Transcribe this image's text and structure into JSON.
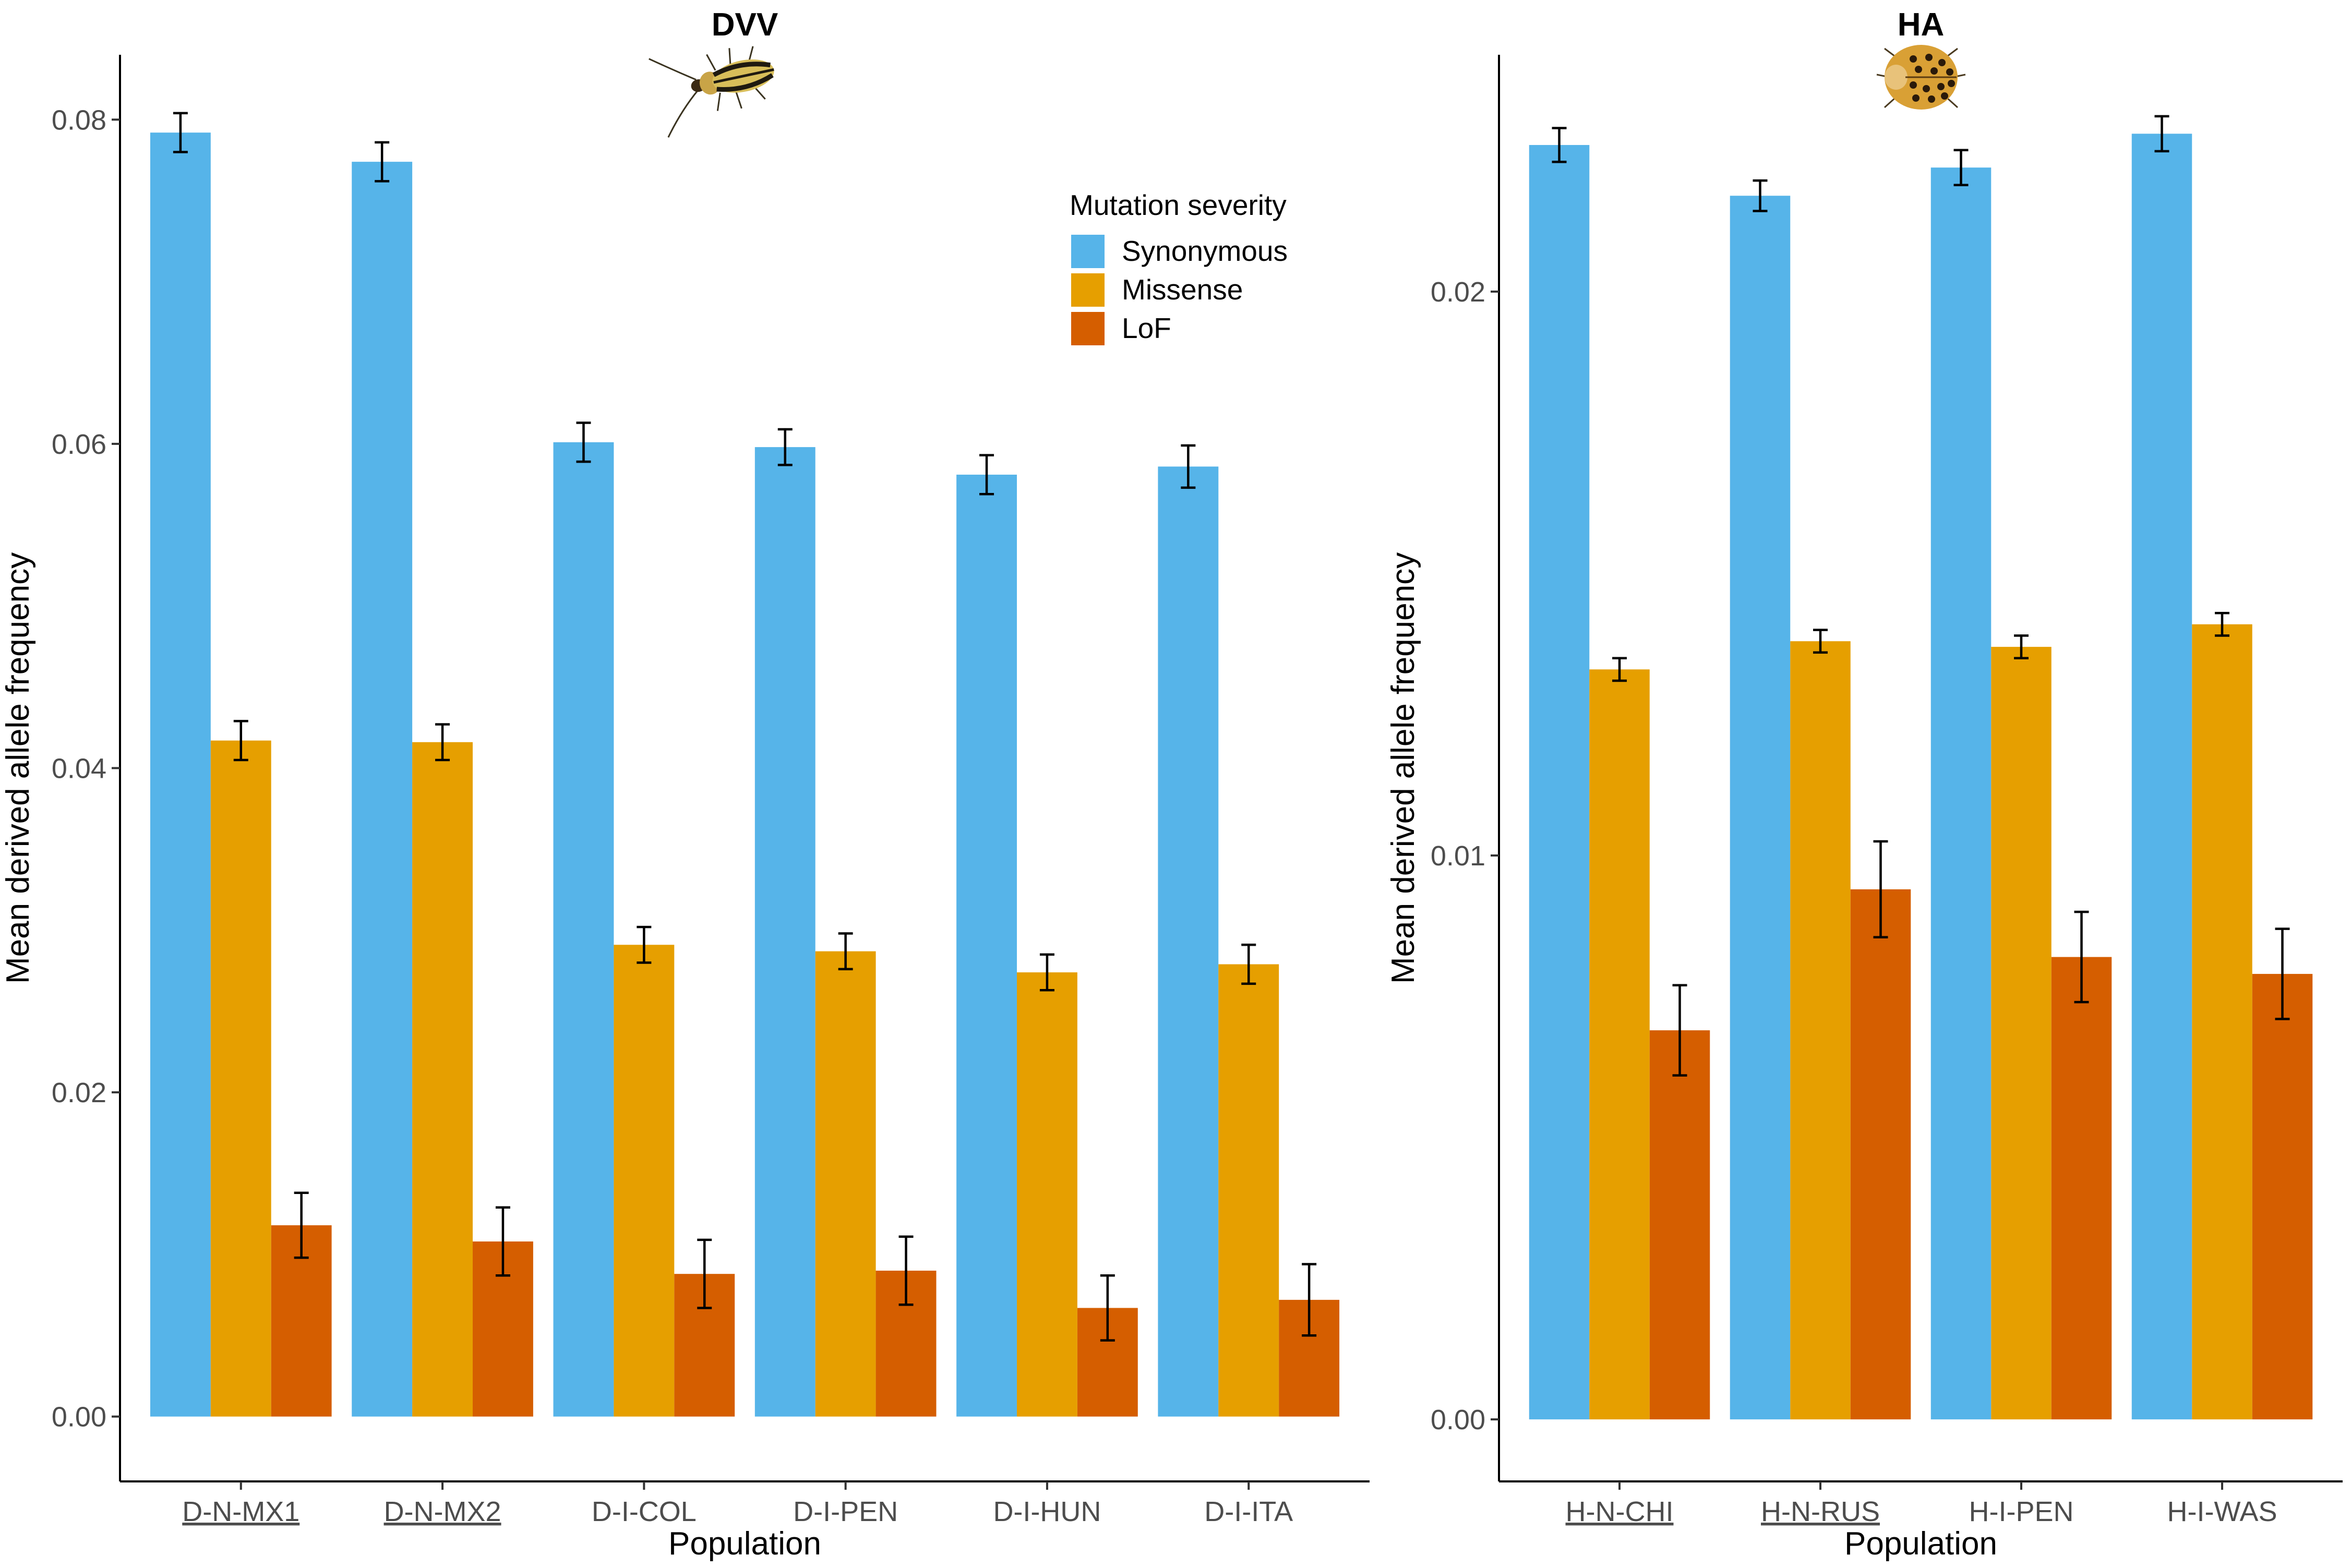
{
  "legend": {
    "title": "Mutation severity",
    "items": [
      {
        "label": "Synonymous",
        "color": "#56B4E9"
      },
      {
        "label": "Missense",
        "color": "#E69F00"
      },
      {
        "label": "LoF",
        "color": "#D55E00"
      }
    ]
  },
  "chart_data": [
    {
      "type": "bar",
      "title": "DVV",
      "icon": "rootworm-beetle-icon",
      "xlabel": "Population",
      "ylabel": "Mean derived allele frequency",
      "ylim": [
        -0.004,
        0.084
      ],
      "yticks": [
        0.0,
        0.02,
        0.04,
        0.06,
        0.08
      ],
      "ytick_labels": [
        "0.00",
        "0.02",
        "0.04",
        "0.06",
        "0.08"
      ],
      "categories": [
        "D-N-MX1",
        "D-N-MX2",
        "D-I-COL",
        "D-I-PEN",
        "D-I-HUN",
        "D-I-ITA"
      ],
      "underlined_categories": [
        "D-N-MX1",
        "D-N-MX2"
      ],
      "series": [
        {
          "name": "Synonymous",
          "values": [
            0.0792,
            0.0774,
            0.0601,
            0.0598,
            0.0581,
            0.0586
          ],
          "errors": [
            0.0012,
            0.0012,
            0.0012,
            0.0011,
            0.0012,
            0.0013
          ]
        },
        {
          "name": "Missense",
          "values": [
            0.0417,
            0.0416,
            0.0291,
            0.0287,
            0.0274,
            0.0279
          ],
          "errors": [
            0.0012,
            0.0011,
            0.0011,
            0.0011,
            0.0011,
            0.0012
          ]
        },
        {
          "name": "LoF",
          "values": [
            0.0118,
            0.0108,
            0.0088,
            0.009,
            0.0067,
            0.0072
          ],
          "errors": [
            0.002,
            0.0021,
            0.0021,
            0.0021,
            0.002,
            0.0022
          ]
        }
      ],
      "legend_position": "top-right",
      "grid": false
    },
    {
      "type": "bar",
      "title": "HA",
      "icon": "ladybird-beetle-icon",
      "xlabel": "Population",
      "ylabel": "Mean derived allele frequency",
      "ylim": [
        -0.0011,
        0.0242
      ],
      "yticks": [
        0.0,
        0.01,
        0.02
      ],
      "ytick_labels": [
        "0.00",
        "0.01",
        "0.02"
      ],
      "categories": [
        "H-N-CHI",
        "H-N-RUS",
        "H-I-PEN",
        "H-I-WAS"
      ],
      "underlined_categories": [
        "H-N-CHI",
        "H-N-RUS"
      ],
      "series": [
        {
          "name": "Synonymous",
          "values": [
            0.0226,
            0.0217,
            0.0222,
            0.0228
          ],
          "errors": [
            0.0003,
            0.00027,
            0.00031,
            0.00031
          ]
        },
        {
          "name": "Missense",
          "values": [
            0.0133,
            0.0138,
            0.0137,
            0.0141
          ],
          "errors": [
            0.0002,
            0.0002,
            0.0002,
            0.0002
          ]
        },
        {
          "name": "LoF",
          "values": [
            0.0069,
            0.0094,
            0.0082,
            0.0079
          ],
          "errors": [
            0.0008,
            0.00085,
            0.0008,
            0.0008
          ]
        }
      ],
      "grid": false
    }
  ]
}
